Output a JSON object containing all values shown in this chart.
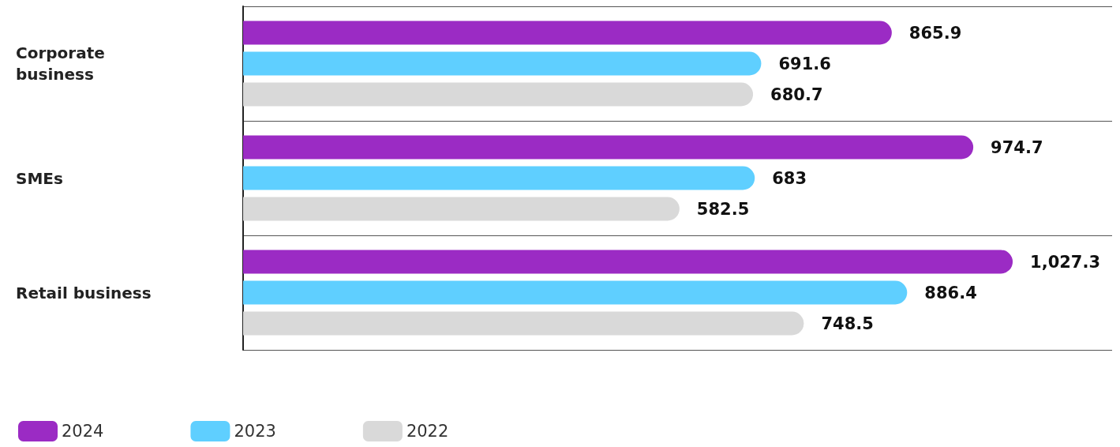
{
  "chart_data": {
    "type": "bar",
    "orientation": "horizontal",
    "categories": [
      "Corporate business",
      "SMEs",
      "Retail business"
    ],
    "series": [
      {
        "name": "2024",
        "color": "#9b2bc4",
        "values": [
          865.9,
          974.7,
          1027.3
        ],
        "value_labels": [
          "865.9",
          "974.7",
          "1,027.3"
        ]
      },
      {
        "name": "2023",
        "color": "#5fcfff",
        "values": [
          691.6,
          683,
          886.4
        ],
        "value_labels": [
          "691.6",
          "683",
          "886.4"
        ]
      },
      {
        "name": "2022",
        "color": "#d9d9d9",
        "values": [
          680.7,
          582.5,
          748.5
        ],
        "value_labels": [
          "680.7",
          "582.5",
          "748.5"
        ]
      }
    ],
    "grid": "y",
    "legend": "bottom left"
  }
}
